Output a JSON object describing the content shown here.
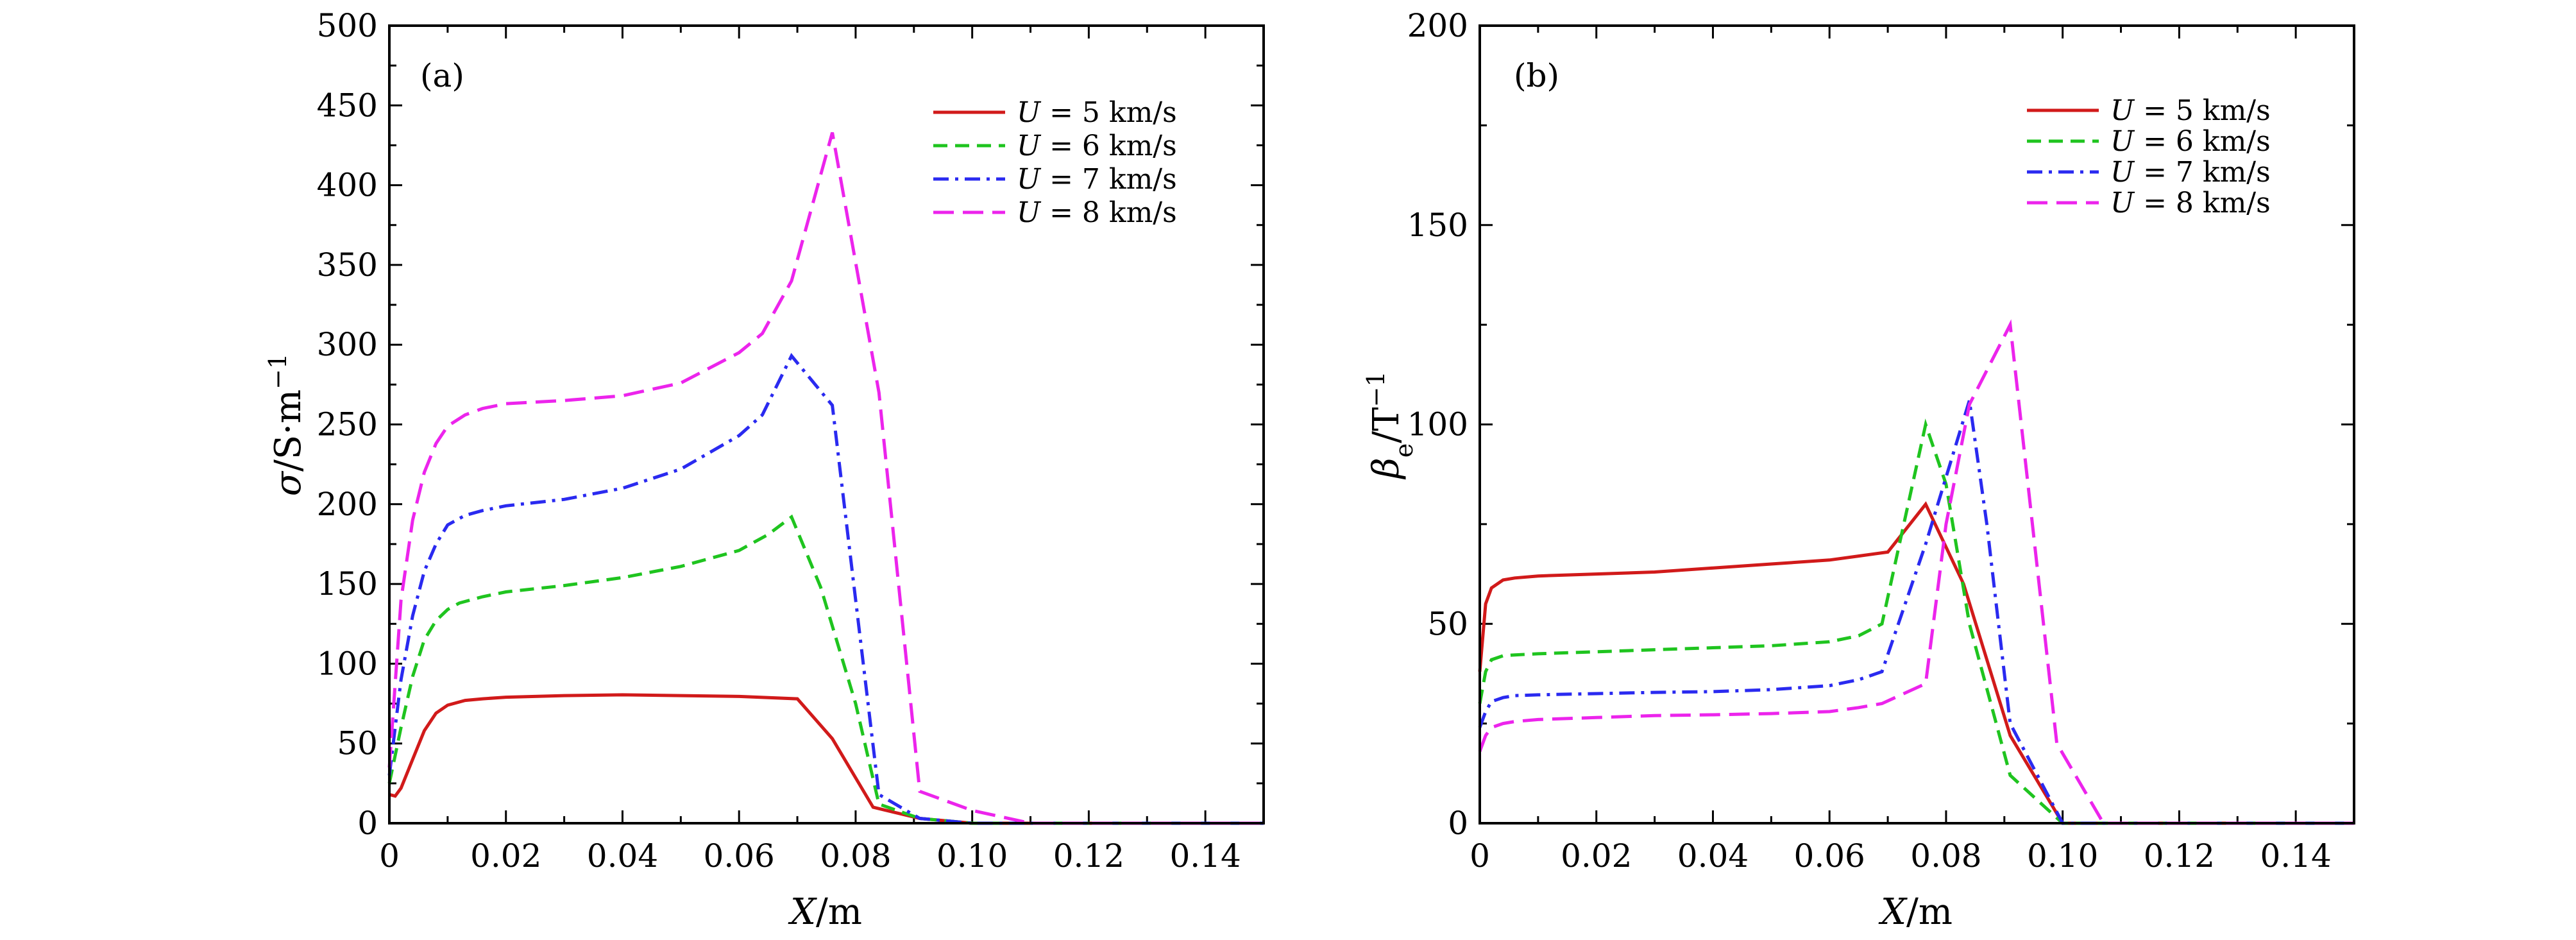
{
  "chart_data": [
    {
      "type": "line",
      "panel_label": "(a)",
      "xlabel_var": "X",
      "xlabel_unit": "/m",
      "ylabel_var": "σ",
      "ylabel_unit": "/S·m",
      "ylabel_exp": "−1",
      "xlim": [
        0,
        0.15
      ],
      "ylim": [
        0,
        500
      ],
      "xticks": [
        0,
        0.02,
        0.04,
        0.06,
        0.08,
        0.1,
        0.12,
        0.14
      ],
      "xtick_labels": [
        "0",
        "0.02",
        "0.04",
        "0.06",
        "0.08",
        "0.10",
        "0.12",
        "0.14"
      ],
      "yticks": [
        0,
        50,
        100,
        150,
        200,
        250,
        300,
        350,
        400,
        450,
        500
      ],
      "ytick_labels": [
        "0",
        "50",
        "100",
        "150",
        "200",
        "250",
        "300",
        "350",
        "400",
        "450",
        "500"
      ],
      "legend_position": "top-right",
      "series": [
        {
          "name": "U = 5 km/s",
          "var": "U",
          "eq": "=",
          "val": "5 km/s",
          "color": "#d11a1a",
          "x": [
            0,
            0.001,
            0.002,
            0.004,
            0.006,
            0.008,
            0.01,
            0.013,
            0.016,
            0.02,
            0.03,
            0.04,
            0.05,
            0.06,
            0.07,
            0.076,
            0.083,
            0.091,
            0.1,
            0.15
          ],
          "y": [
            18,
            17,
            22,
            40,
            58,
            69,
            74,
            77,
            78,
            79,
            80,
            80.5,
            80,
            79.5,
            78,
            53,
            10,
            3,
            0,
            0
          ]
        },
        {
          "name": "U = 6 km/s",
          "var": "U",
          "eq": "=",
          "val": "6 km/s",
          "color": "#1fc41f",
          "x": [
            0,
            0.002,
            0.004,
            0.006,
            0.008,
            0.01,
            0.012,
            0.016,
            0.02,
            0.03,
            0.04,
            0.05,
            0.06,
            0.065,
            0.069,
            0.074,
            0.08,
            0.084,
            0.091,
            0.1,
            0.15
          ],
          "y": [
            25,
            60,
            92,
            115,
            127,
            134,
            138,
            142,
            145,
            149,
            154,
            161,
            171,
            181,
            192,
            148,
            75,
            12,
            3,
            0,
            0
          ]
        },
        {
          "name": "U = 7 km/s",
          "var": "U",
          "eq": "=",
          "val": "7 km/s",
          "color": "#2a2af0",
          "x": [
            0,
            0.002,
            0.004,
            0.006,
            0.008,
            0.01,
            0.013,
            0.016,
            0.02,
            0.03,
            0.04,
            0.05,
            0.06,
            0.064,
            0.069,
            0.076,
            0.084,
            0.091,
            0.1,
            0.15
          ],
          "y": [
            30,
            90,
            130,
            158,
            175,
            187,
            193,
            196,
            199,
            203,
            210,
            222,
            243,
            256,
            293,
            262,
            18,
            3,
            0,
            0
          ]
        },
        {
          "name": "U = 8 km/s",
          "var": "U",
          "eq": "=",
          "val": "8 km/s",
          "color": "#ec24ec",
          "x": [
            0,
            0.002,
            0.004,
            0.006,
            0.008,
            0.01,
            0.013,
            0.016,
            0.02,
            0.03,
            0.04,
            0.05,
            0.06,
            0.064,
            0.069,
            0.076,
            0.084,
            0.091,
            0.1,
            0.11,
            0.15
          ],
          "y": [
            35,
            140,
            190,
            220,
            238,
            249,
            256,
            260,
            263,
            265,
            268,
            276,
            295,
            307,
            340,
            433,
            270,
            20,
            8,
            0,
            0
          ]
        }
      ]
    },
    {
      "type": "line",
      "panel_label": "(b)",
      "xlabel_var": "X",
      "xlabel_unit": "/m",
      "ylabel_var": "β",
      "ylabel_sub": "e",
      "ylabel_unit": "/T",
      "ylabel_exp": "−1",
      "xlim": [
        0,
        0.15
      ],
      "ylim": [
        0,
        200
      ],
      "xticks": [
        0,
        0.02,
        0.04,
        0.06,
        0.08,
        0.1,
        0.12,
        0.14
      ],
      "xtick_labels": [
        "0",
        "0.02",
        "0.04",
        "0.06",
        "0.08",
        "0.10",
        "0.12",
        "0.14"
      ],
      "yticks": [
        0,
        50,
        100,
        150,
        200
      ],
      "ytick_labels": [
        "0",
        "50",
        "100",
        "150",
        "200"
      ],
      "legend_position": "top-right",
      "series": [
        {
          "name": "U = 5 km/s",
          "var": "U",
          "eq": "=",
          "val": "5 km/s",
          "color": "#d11a1a",
          "x": [
            0,
            0.001,
            0.002,
            0.004,
            0.006,
            0.01,
            0.02,
            0.03,
            0.04,
            0.05,
            0.06,
            0.065,
            0.07,
            0.0765,
            0.083,
            0.091,
            0.1,
            0.15
          ],
          "y": [
            38,
            55,
            59,
            61,
            61.5,
            62,
            62.5,
            63,
            64,
            65,
            66,
            67,
            68,
            80,
            60,
            22,
            0,
            0
          ]
        },
        {
          "name": "U = 6 km/s",
          "var": "U",
          "eq": "=",
          "val": "6 km/s",
          "color": "#1fc41f",
          "x": [
            0,
            0.001,
            0.002,
            0.004,
            0.006,
            0.01,
            0.02,
            0.03,
            0.04,
            0.05,
            0.06,
            0.065,
            0.069,
            0.072,
            0.0765,
            0.08,
            0.084,
            0.091,
            0.1,
            0.15
          ],
          "y": [
            30,
            38,
            41,
            42,
            42.2,
            42.5,
            43,
            43.5,
            44,
            44.5,
            45.5,
            47,
            50,
            70,
            100,
            85,
            50,
            12,
            0,
            0
          ]
        },
        {
          "name": "U = 7 km/s",
          "var": "U",
          "eq": "=",
          "val": "7 km/s",
          "color": "#2a2af0",
          "x": [
            0,
            0.001,
            0.002,
            0.004,
            0.006,
            0.01,
            0.02,
            0.03,
            0.04,
            0.05,
            0.06,
            0.065,
            0.069,
            0.0765,
            0.084,
            0.087,
            0.091,
            0.1,
            0.15
          ],
          "y": [
            24,
            28,
            30.5,
            31.5,
            32,
            32.2,
            32.5,
            32.8,
            33,
            33.5,
            34.5,
            36,
            38,
            70,
            106,
            75,
            25,
            0,
            0
          ]
        },
        {
          "name": "U = 8 km/s",
          "var": "U",
          "eq": "=",
          "val": "8 km/s",
          "color": "#ec24ec",
          "x": [
            0,
            0.001,
            0.002,
            0.004,
            0.006,
            0.01,
            0.02,
            0.03,
            0.04,
            0.05,
            0.06,
            0.065,
            0.069,
            0.0765,
            0.08,
            0.084,
            0.091,
            0.099,
            0.107,
            0.15
          ],
          "y": [
            18,
            22,
            24,
            25,
            25.5,
            26,
            26.5,
            27,
            27.2,
            27.5,
            28,
            29,
            30,
            35,
            75,
            105,
            125,
            20,
            0,
            0
          ]
        }
      ]
    }
  ]
}
